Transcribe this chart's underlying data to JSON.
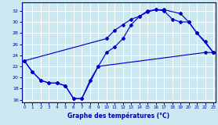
{
  "xlabel": "Graphe des températures (°C)",
  "bg_color": "#cce8f0",
  "grid_color": "#ffffff",
  "line_color": "#0000cc",
  "xlim": [
    -0.3,
    23.3
  ],
  "ylim": [
    15.5,
    33.5
  ],
  "yticks": [
    16,
    18,
    20,
    22,
    24,
    26,
    28,
    30,
    32
  ],
  "xticks": [
    0,
    1,
    2,
    3,
    4,
    5,
    6,
    7,
    8,
    9,
    10,
    11,
    12,
    13,
    14,
    15,
    16,
    17,
    18,
    19,
    20,
    21,
    22,
    23
  ],
  "series": [
    {
      "x": [
        0,
        1,
        2,
        3,
        4,
        5,
        6,
        7,
        9,
        22,
        23
      ],
      "y": [
        23.0,
        21.0,
        19.5,
        19.0,
        19.0,
        18.5,
        16.2,
        16.2,
        22.0,
        24.5,
        24.5
      ]
    },
    {
      "x": [
        0,
        10,
        11,
        12,
        13,
        14,
        15,
        16,
        17,
        19,
        20,
        21,
        23
      ],
      "y": [
        23.0,
        27.0,
        28.5,
        29.5,
        30.5,
        31.0,
        31.8,
        32.2,
        32.2,
        31.5,
        30.0,
        28.0,
        24.5
      ]
    },
    {
      "x": [
        0,
        1,
        2,
        3,
        4,
        5,
        6,
        7,
        8,
        9,
        10,
        11,
        12,
        13,
        14,
        15,
        16,
        17,
        18,
        19,
        20,
        21,
        22,
        23
      ],
      "y": [
        23.0,
        21.0,
        19.5,
        19.0,
        19.0,
        18.5,
        16.2,
        16.2,
        19.5,
        22.0,
        24.5,
        25.5,
        27.0,
        29.5,
        31.0,
        32.0,
        32.2,
        32.0,
        30.5,
        30.0,
        30.0,
        28.0,
        26.5,
        24.5
      ]
    }
  ]
}
